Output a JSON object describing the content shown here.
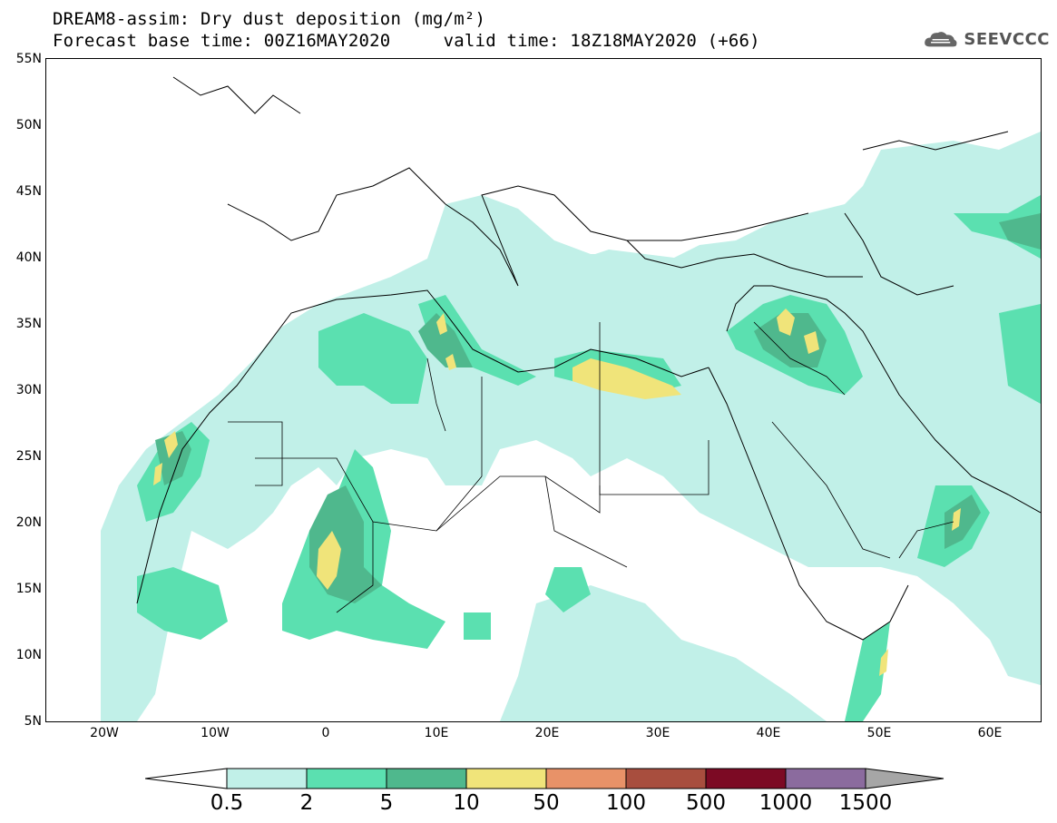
{
  "header": {
    "title_line1": "DREAM8-assim: Dry dust deposition (mg/m²)",
    "title_line2": "Forecast base time: 00Z16MAY2020     valid time: 18Z18MAY2020 (+66)"
  },
  "logo": {
    "text": "SEEVCCC",
    "icon": "cloud-logo-icon"
  },
  "map": {
    "region": "North Africa, Middle East, Europe",
    "lat_labels": [
      "55N",
      "50N",
      "45N",
      "40N",
      "35N",
      "30N",
      "25N",
      "20N",
      "15N",
      "10N",
      "5N"
    ],
    "lon_labels": [
      "20W",
      "10W",
      "0",
      "10E",
      "20E",
      "30E",
      "40E",
      "50E",
      "60E"
    ],
    "lat_range": [
      5,
      55
    ],
    "lon_range": [
      -25,
      65
    ]
  },
  "legend": {
    "labels": [
      "0.5",
      "2",
      "5",
      "10",
      "50",
      "100",
      "500",
      "1000",
      "1500"
    ],
    "colors": [
      "#ffffff",
      "#c1f0e8",
      "#5be0b0",
      "#4fb88d",
      "#f0e47a",
      "#e89268",
      "#a84e3e",
      "#7c0a24",
      "#8b6b9e",
      "#a6a6a6"
    ]
  }
}
